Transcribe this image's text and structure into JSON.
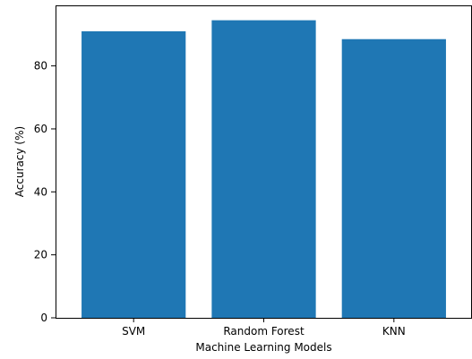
{
  "chart_data": {
    "type": "bar",
    "categories": [
      "SVM",
      "Random Forest",
      "KNN"
    ],
    "values": [
      91,
      94.5,
      88.5
    ],
    "title": "",
    "xlabel": "Machine Learning Models",
    "ylabel": "Accuracy (%)",
    "ylim": [
      0,
      99.225
    ],
    "yticks": [
      0,
      20,
      40,
      60,
      80
    ],
    "grid": false,
    "bar_color": "#1f77b4"
  }
}
